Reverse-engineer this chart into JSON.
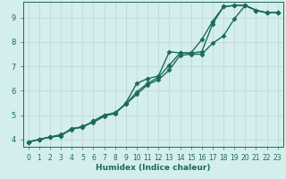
{
  "xlabel": "Humidex (Indice chaleur)",
  "ylabel": "",
  "xlim": [
    -0.5,
    23.5
  ],
  "ylim": [
    3.7,
    9.65
  ],
  "xticks": [
    0,
    1,
    2,
    3,
    4,
    5,
    6,
    7,
    8,
    9,
    10,
    11,
    12,
    13,
    14,
    15,
    16,
    17,
    18,
    19,
    20,
    21,
    22,
    23
  ],
  "yticks": [
    4,
    5,
    6,
    7,
    8,
    9
  ],
  "background_color": "#d4eeed",
  "line_color": "#1a6b5a",
  "grid_color": "#c2d8d5",
  "lines": [
    {
      "x": [
        0,
        1,
        2,
        3,
        4,
        5,
        6,
        7,
        8,
        9,
        10,
        11,
        12,
        13,
        14,
        15,
        16,
        17,
        18,
        19,
        20,
        21,
        22,
        23
      ],
      "y": [
        3.9,
        4.0,
        4.1,
        4.15,
        4.45,
        4.5,
        4.75,
        5.0,
        5.05,
        5.5,
        6.3,
        6.5,
        6.6,
        7.6,
        7.55,
        7.55,
        8.1,
        8.85,
        9.45,
        9.5,
        9.5,
        9.3,
        9.2,
        9.2
      ]
    },
    {
      "x": [
        0,
        1,
        2,
        3,
        4,
        5,
        6,
        7,
        8,
        9,
        10,
        11,
        12,
        13,
        14,
        15,
        16,
        17,
        18,
        19,
        20,
        21,
        22,
        23
      ],
      "y": [
        3.9,
        4.0,
        4.1,
        4.15,
        4.45,
        4.5,
        4.75,
        5.0,
        5.1,
        5.45,
        5.95,
        6.3,
        6.55,
        7.05,
        7.55,
        7.55,
        7.6,
        8.75,
        9.45,
        9.5,
        9.5,
        9.3,
        9.2,
        9.2
      ]
    },
    {
      "x": [
        0,
        1,
        2,
        3,
        4,
        5,
        6,
        7,
        8,
        9,
        10,
        11,
        12,
        13,
        14,
        15,
        16,
        17,
        18,
        19,
        20,
        21,
        22,
        23
      ],
      "y": [
        3.9,
        4.0,
        4.1,
        4.2,
        4.4,
        4.55,
        4.7,
        4.95,
        5.1,
        5.45,
        5.85,
        6.25,
        6.45,
        6.85,
        7.45,
        7.5,
        7.5,
        7.95,
        8.25,
        8.95,
        9.5,
        9.3,
        9.2,
        9.2
      ]
    }
  ],
  "marker": "D",
  "markersize": 2.5,
  "linewidth": 1.0,
  "xlabel_fontsize": 6.5,
  "tick_fontsize": 5.5
}
